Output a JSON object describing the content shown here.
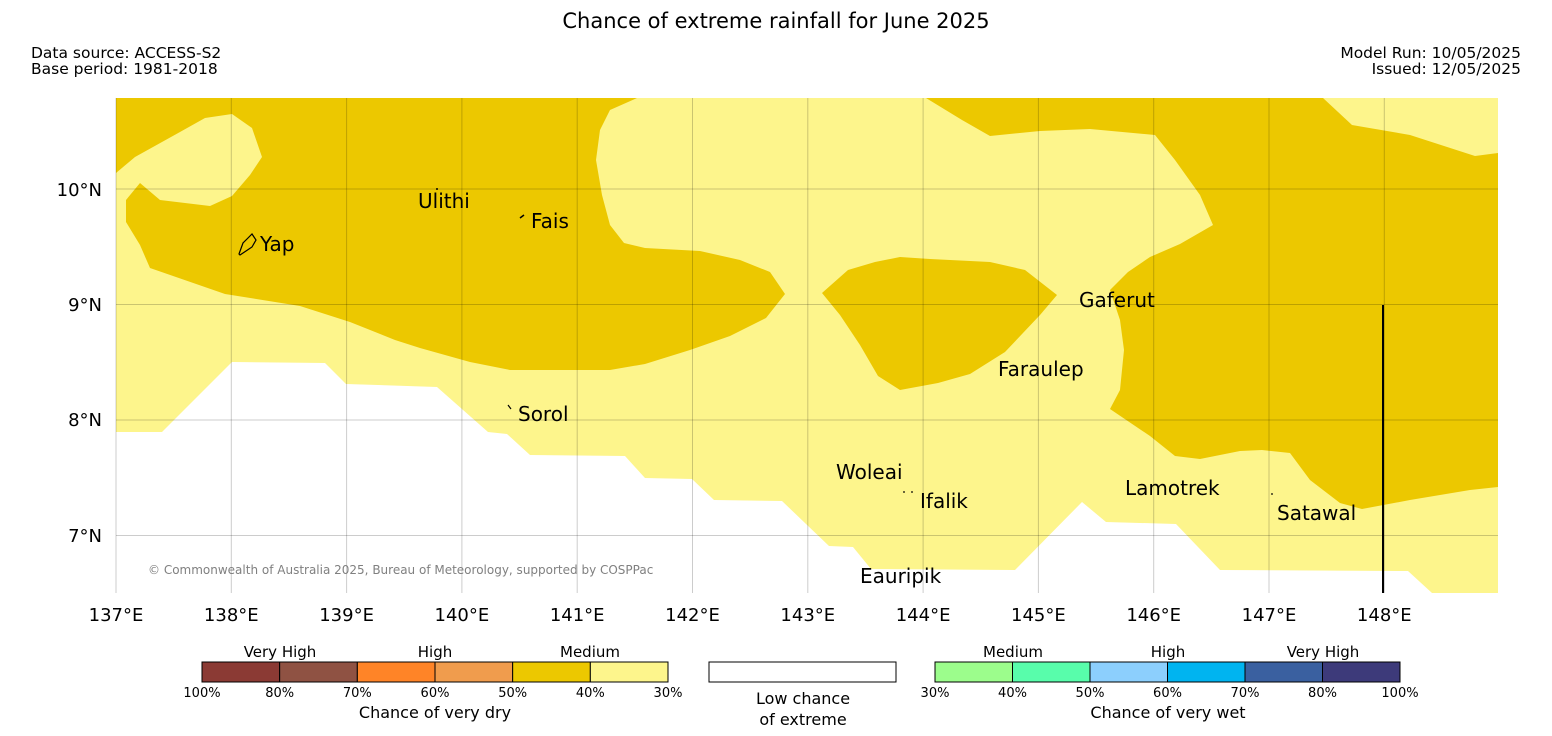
{
  "header": {
    "title": "Chance of extreme rainfall for June 2025",
    "data_source": "Data source: ACCESS-S2",
    "base_period": "Base period: 1981-2018",
    "model_run": "Model Run: 10/05/2025",
    "issued": "Issued: 12/05/2025"
  },
  "map": {
    "lat_labels": [
      "10°N",
      "9°N",
      "8°N",
      "7°N"
    ],
    "lon_labels": [
      "137°E",
      "138°E",
      "139°E",
      "140°E",
      "141°E",
      "142°E",
      "143°E",
      "144°E",
      "145°E",
      "146°E",
      "147°E",
      "148°E"
    ],
    "places": {
      "ulithi": "Ulithi",
      "fais": "Fais",
      "yap": "Yap",
      "gaferut": "Gaferut",
      "faraulep": "Faraulep",
      "sorol": "Sorol",
      "woleai": "Woleai",
      "ifalik": "Ifalik",
      "lamotrek": "Lamotrek",
      "satawal": "Satawal",
      "eauripik": "Eauripik"
    },
    "copyright": "© Commonwealth of Australia 2025, Bureau of Meteorology, supported by COSPPac",
    "colors": {
      "dry_40_50": "#ecc800",
      "dry_30_40": "#fdf58c",
      "low_chance": "#ffffff"
    }
  },
  "legend": {
    "dry": {
      "categories": [
        "Very High",
        "High",
        "Medium"
      ],
      "ticks": [
        "100%",
        "80%",
        "70%",
        "60%",
        "50%",
        "40%",
        "30%"
      ],
      "colors": [
        "#8b3a34",
        "#8f5243",
        "#ff8427",
        "#f09c4d",
        "#ecc800",
        "#fdf58c"
      ],
      "title": "Chance of very dry"
    },
    "low": {
      "line1": "Low chance",
      "line2": "of extreme"
    },
    "wet": {
      "categories": [
        "Medium",
        "High",
        "Very High"
      ],
      "ticks": [
        "30%",
        "40%",
        "50%",
        "60%",
        "70%",
        "80%",
        "100%"
      ],
      "colors": [
        "#9cfd8c",
        "#58fdab",
        "#8ccffd",
        "#00b4f0",
        "#3a60a0",
        "#3d3a7a"
      ],
      "title": "Chance of very wet"
    }
  }
}
